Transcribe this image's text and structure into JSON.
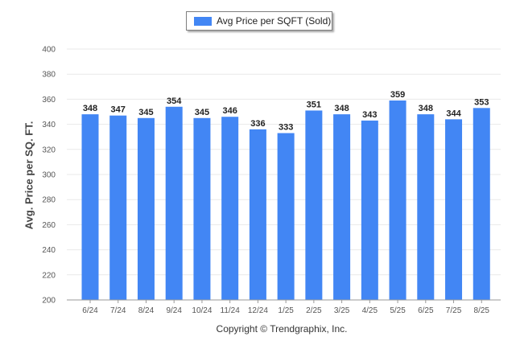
{
  "legend": {
    "label": "Avg Price per SQFT (Sold)"
  },
  "footer": {
    "copyright": "Copyright © Trendgraphix, Inc."
  },
  "colors": {
    "bar": "#4286f4",
    "grid": "#e9e9e9",
    "axis": "#999999"
  },
  "chart_data": {
    "type": "bar",
    "title": "",
    "xlabel": "",
    "ylabel": "Avg. Price per SQ. FT.",
    "ylim": [
      200,
      400
    ],
    "yticks": [
      200,
      220,
      240,
      260,
      280,
      300,
      320,
      340,
      360,
      380,
      400
    ],
    "grid": true,
    "legend_position": "top-center",
    "categories": [
      "6/24",
      "7/24",
      "8/24",
      "9/24",
      "10/24",
      "11/24",
      "12/24",
      "1/25",
      "2/25",
      "3/25",
      "4/25",
      "5/25",
      "6/25",
      "7/25",
      "8/25"
    ],
    "series": [
      {
        "name": "Avg Price per SQFT (Sold)",
        "values": [
          348,
          347,
          345,
          354,
          345,
          346,
          336,
          333,
          351,
          348,
          343,
          359,
          348,
          344,
          353
        ]
      }
    ]
  }
}
